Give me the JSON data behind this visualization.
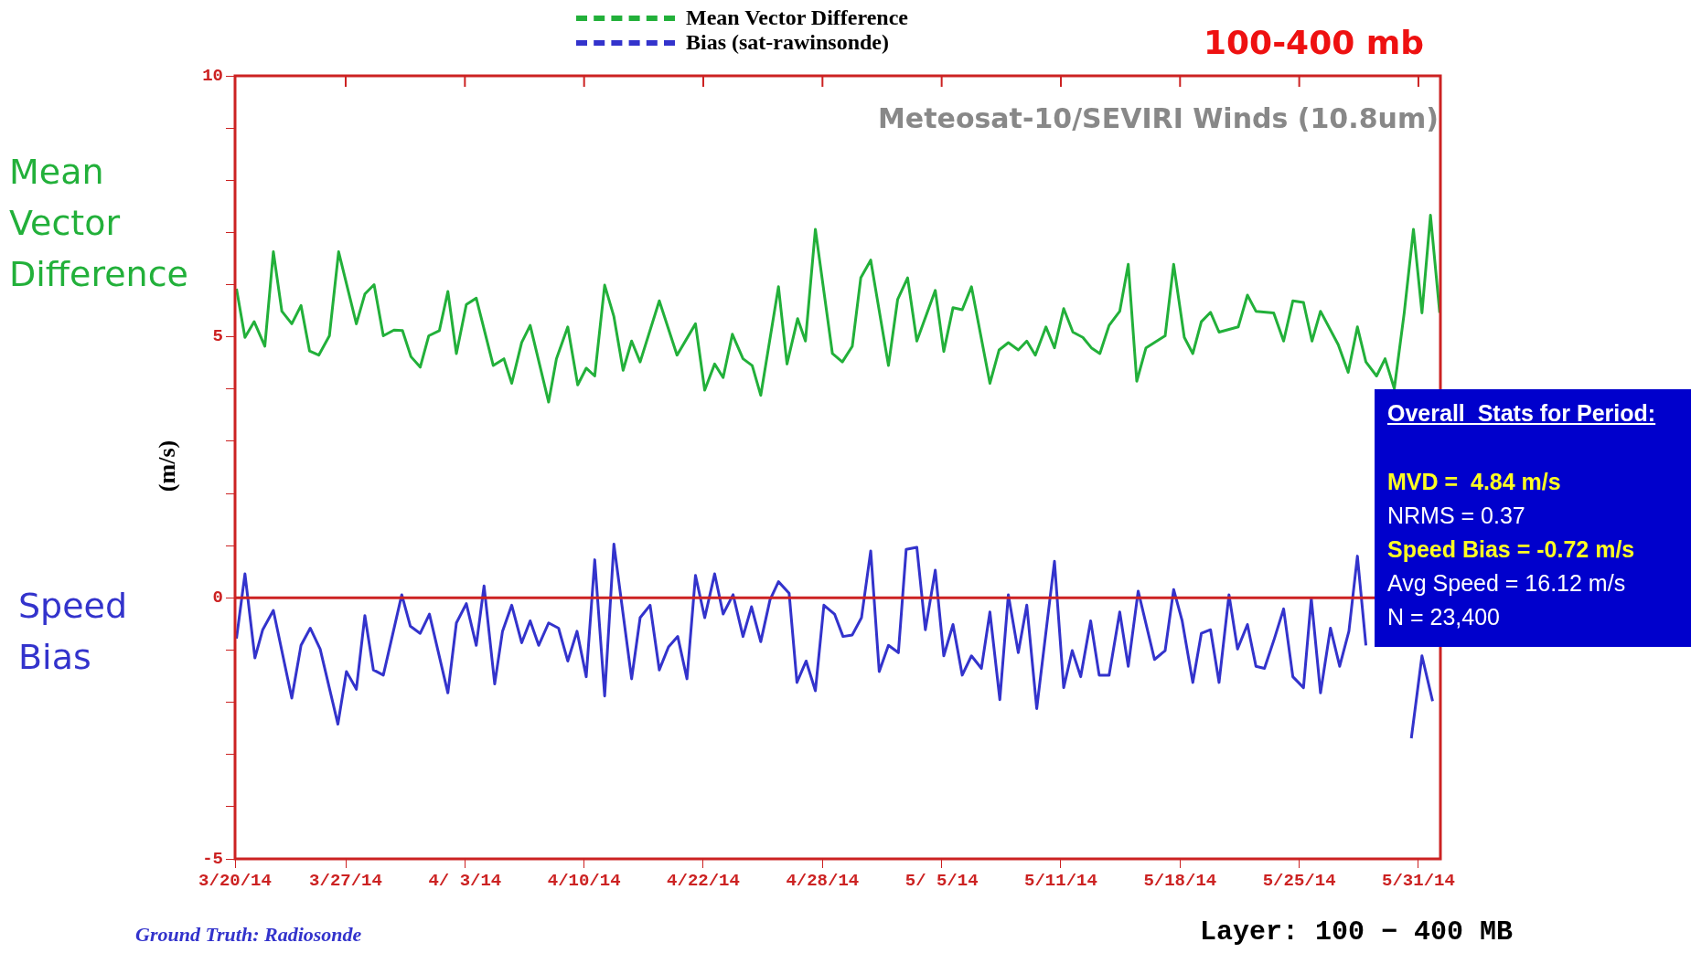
{
  "chart_data": {
    "type": "line",
    "title": "100-400 mb",
    "subtitle": "Meteosat-10/SEVIRI Winds (10.8um)",
    "ylabel": "(m/s)",
    "xlim": [
      "--03-20T12:00",
      "--05-30T07:00"
    ],
    "xticks": [
      {
        "value": "--03-20T12:00",
        "label": "3/20/14"
      },
      {
        "value": "--03-27",
        "label": "3/27/14"
      },
      {
        "value": "--04-03",
        "label": "4/ 3/14"
      },
      {
        "value": "--04-10",
        "label": "4/10/14"
      },
      {
        "value": "--04-17",
        "label": "4/22/14"
      },
      {
        "value": "--04-24",
        "label": "4/28/14"
      },
      {
        "value": "--05-01",
        "label": "5/ 5/14"
      },
      {
        "value": "--05-08",
        "label": "5/11/14"
      },
      {
        "value": "--05-15",
        "label": "5/18/14"
      },
      {
        "value": "--05-22",
        "label": "5/25/14"
      },
      {
        "value": "--05-29",
        "label": "5/31/14"
      }
    ],
    "ylim": [
      -5,
      10
    ],
    "yticks": [
      -5,
      {
        "value": -4,
        "label": null
      },
      {
        "value": -3,
        "label": null
      },
      {
        "value": -2,
        "label": null
      },
      {
        "value": -1,
        "label": null
      },
      0,
      {
        "value": 1,
        "label": null
      },
      {
        "value": 2,
        "label": null
      },
      {
        "value": 3,
        "label": null
      },
      {
        "value": 4,
        "label": null
      },
      5,
      {
        "value": 6,
        "label": null
      },
      {
        "value": 7,
        "label": null
      },
      {
        "value": 8,
        "label": null
      },
      {
        "value": 9,
        "label": null
      },
      10
    ],
    "grid": false,
    "legend": "top",
    "marker": "none",
    "line_style": "solid",
    "ref_lines": [
      {
        "axis": "y",
        "value": 0,
        "color": "#cc2222"
      }
    ],
    "series": [
      {
        "name": "Mean Vector Difference",
        "color": "#22b03a",
        "x": [
          "--03-20T14:00",
          "--03-21T02:00",
          "--03-21T15:00",
          "--03-22T06:00",
          "--03-22T18:00",
          "--03-23T06:00",
          "--03-23T20:00",
          "--03-24T09:00",
          "--03-24T21:00",
          "--03-25T10:00",
          "--03-26T01:00",
          "--03-26T14:00",
          "--03-27T15:00",
          "--03-28T03:00",
          "--03-28T16:00",
          "--03-29T05:00",
          "--03-29T20:00",
          "--03-30T08:00",
          "--03-30T20:00",
          "--03-31T09:00",
          "--03-31T21:00",
          "--04-01T12:00",
          "--04-02T00:00",
          "--04-02T12:00",
          "--04-03T02:00",
          "--04-03T16:00",
          "--04-04T16:00",
          "--04-05T07:00",
          "--04-05T18:00",
          "--04-06T08:00",
          "--04-06T20:00",
          "--04-07T22:00",
          "--04-08T09:00",
          "--04-09T01:00",
          "--04-09T15:00",
          "--04-10T03:00",
          "--04-10T15:00",
          "--04-11T05:00",
          "--04-11T18:00",
          "--04-12T07:00",
          "--04-12T19:00",
          "--04-13T07:00",
          "--04-14T10:00",
          "--04-15T11:00",
          "--04-16T13:00",
          "--04-17T02:00",
          "--04-17T16:00",
          "--04-18T04:00",
          "--04-18T17:00",
          "--04-19T08:00",
          "--04-19T21:00",
          "--04-20T09:00",
          "--04-21T10:00",
          "--04-21T22:00",
          "--04-22T13:00",
          "--04-23T00:00",
          "--04-23T14:00",
          "--04-24T14:00",
          "--04-25T04:00",
          "--04-25T18:00",
          "--04-26T06:00",
          "--04-26T20:00",
          "--04-27T21:00",
          "--04-28T10:00",
          "--04-29T00:00",
          "--04-29T13:00",
          "--04-30T15:00",
          "--05-01T03:00",
          "--05-01T16:00",
          "--05-02T05:00",
          "--05-02T18:00",
          "--05-03T20:00",
          "--05-04T09:00",
          "--05-04T22:00",
          "--05-05T12:00",
          "--05-06T00:00",
          "--05-06T12:00",
          "--05-07T03:00",
          "--05-07T15:00",
          "--05-08T04:00",
          "--05-08T17:00",
          "--05-09T07:00",
          "--05-09T19:00",
          "--05-10T07:00",
          "--05-10T20:00",
          "--05-11T11:00",
          "--05-11T23:00",
          "--05-12T11:00",
          "--05-13T00:00",
          "--05-14T03:00",
          "--05-14T15:00",
          "--05-15T06:00",
          "--05-15T18:00",
          "--05-16T06:00",
          "--05-16T19:00",
          "--05-17T07:00",
          "--05-18T10:00",
          "--05-18T23:00",
          "--05-19T11:00",
          "--05-20T12:00",
          "--05-21T02:00",
          "--05-21T15:00",
          "--05-22T06:00",
          "--05-22T18:00",
          "--05-23T06:00",
          "--05-24T07:00",
          "--05-24T21:00",
          "--05-25T10:00",
          "--05-25T22:00",
          "--05-26T13:00",
          "--05-27T01:00",
          "--05-27T14:00",
          "--05-28T04:00",
          "--05-28T17:00",
          "--05-29T05:00",
          "--05-29T17:00",
          "--05-30T06:00"
        ],
        "values": [
          5.92,
          4.99,
          5.29,
          4.82,
          6.63,
          5.49,
          5.25,
          5.6,
          4.73,
          4.65,
          5.02,
          6.63,
          5.25,
          5.82,
          6.0,
          5.02,
          5.13,
          5.12,
          4.62,
          4.42,
          5.02,
          5.12,
          5.87,
          4.68,
          5.62,
          5.74,
          4.45,
          4.58,
          4.11,
          4.89,
          5.22,
          3.75,
          4.58,
          5.19,
          4.08,
          4.4,
          4.25,
          5.99,
          5.39,
          4.36,
          4.92,
          4.52,
          5.69,
          4.65,
          5.25,
          3.98,
          4.48,
          4.22,
          5.05,
          4.58,
          4.45,
          3.88,
          5.96,
          4.48,
          5.35,
          4.92,
          7.06,
          4.68,
          4.52,
          4.82,
          6.13,
          6.47,
          4.45,
          5.72,
          6.13,
          4.92,
          5.89,
          4.72,
          5.56,
          5.52,
          5.96,
          4.11,
          4.75,
          4.89,
          4.75,
          4.92,
          4.65,
          5.19,
          4.79,
          5.54,
          5.09,
          4.99,
          4.79,
          4.68,
          5.22,
          5.49,
          6.39,
          4.15,
          4.79,
          5.02,
          6.39,
          4.99,
          4.68,
          5.29,
          5.47,
          5.09,
          5.19,
          5.8,
          5.49,
          5.46,
          4.92,
          5.69,
          5.66,
          4.92,
          5.49,
          4.85,
          4.32,
          5.19,
          4.52,
          4.25,
          4.58,
          4.01,
          5.46,
          7.06,
          5.46,
          7.33,
          5.46
        ]
      },
      {
        "name": "Bias (sat-rawinsonde)",
        "color": "#3333cc",
        "x": [
          "--03-20T14:00",
          "--03-21T02:00",
          "--03-21T16:00",
          "--03-22T03:00",
          "--03-22T18:00",
          "--03-23T20:00",
          "--03-24T09:00",
          "--03-24T22:00",
          "--03-25T12:00",
          "--03-26T13:00",
          "--03-27T01:00",
          "--03-27T15:00",
          "--03-28T03:00",
          "--03-28T15:00",
          "--03-29T05:00",
          "--03-30T07:00",
          "--03-30T19:00",
          "--03-31T09:00",
          "--03-31T22:00",
          "--04-02T00:00",
          "--04-02T12:00",
          "--04-03T02:00",
          "--04-03T16:00",
          "--04-04T03:00",
          "--04-04T18:00",
          "--04-05T05:00",
          "--04-05T18:00",
          "--04-06T08:00",
          "--04-06T20:00",
          "--04-07T08:00",
          "--04-07T22:00",
          "--04-08T12:00",
          "--04-09T01:00",
          "--04-09T14:00",
          "--04-10T03:00",
          "--04-10T15:00",
          "--04-11T05:00",
          "--04-11T18:00",
          "--04-12T19:00",
          "--04-13T07:00",
          "--04-13T21:00",
          "--04-14T10:00",
          "--04-14T23:00",
          "--04-15T12:00",
          "--04-16T01:00",
          "--04-16T13:00",
          "--04-17T02:00",
          "--04-17T16:00",
          "--04-18T04:00",
          "--04-18T18:00",
          "--04-19T08:00",
          "--04-19T20:00",
          "--04-20T09:00",
          "--04-20T22:00",
          "--04-21T10:00",
          "--04-22T01:00",
          "--04-22T12:00",
          "--04-23T01:00",
          "--04-23T14:00",
          "--04-24T02:00",
          "--04-24T17:00",
          "--04-25T05:00",
          "--04-25T18:00",
          "--04-26T07:00",
          "--04-26T20:00",
          "--04-27T08:00",
          "--04-27T21:00",
          "--04-28T11:00",
          "--04-28T22:00",
          "--04-29T13:00",
          "--04-30T01:00",
          "--04-30T15:00",
          "--05-01T03:00",
          "--05-01T16:00",
          "--05-02T05:00",
          "--05-02T18:00",
          "--05-03T08:00",
          "--05-03T20:00",
          "--05-04T10:00",
          "--05-04T22:00",
          "--05-05T12:00",
          "--05-06T00:00",
          "--05-06T14:00",
          "--05-07T15:00",
          "--05-08T04:00",
          "--05-08T16:00",
          "--05-09T04:00",
          "--05-09T18:00",
          "--05-10T06:00",
          "--05-10T20:00",
          "--05-11T11:00",
          "--05-11T23:00",
          "--05-12T13:00",
          "--05-13T12:00",
          "--05-14T03:00",
          "--05-14T15:00",
          "--05-15T03:00",
          "--05-15T18:00",
          "--05-16T06:00",
          "--05-16T19:00",
          "--05-17T07:00",
          "--05-17T21:00",
          "--05-18T09:00",
          "--05-18T23:00",
          "--05-19T11:00",
          "--05-19T23:00",
          "--05-20T13:00",
          "--05-21T02:00",
          "--05-21T15:00",
          "--05-22T06:00",
          "--05-22T17:00",
          "--05-23T06:00",
          "--05-23T20:00",
          "--05-24T09:00",
          "--05-24T22:00",
          "--05-25T10:00",
          "--05-25T22:00",
          "--05-26T23:00",
          "--05-28T14:00",
          "--05-29T05:00",
          "--05-29T20:00"
        ],
        "values": [
          -0.78,
          0.46,
          -1.15,
          -0.61,
          -0.24,
          -1.92,
          -0.91,
          -0.58,
          -0.98,
          -2.42,
          -1.41,
          -1.75,
          -0.34,
          -1.38,
          -1.48,
          0.06,
          -0.54,
          -0.68,
          -0.31,
          -1.82,
          -0.48,
          -0.11,
          -0.91,
          0.23,
          -1.65,
          -0.64,
          -0.14,
          -0.86,
          -0.44,
          -0.91,
          -0.48,
          -0.58,
          -1.21,
          -0.64,
          -1.51,
          0.73,
          -1.88,
          1.03,
          -1.55,
          -0.38,
          -0.14,
          -1.38,
          -0.94,
          -0.74,
          -1.55,
          0.43,
          -0.38,
          0.46,
          -0.31,
          0.06,
          -0.74,
          -0.17,
          -0.84,
          -0.04,
          0.31,
          0.09,
          -1.62,
          -1.21,
          -1.78,
          -0.14,
          -0.31,
          -0.74,
          -0.71,
          -0.38,
          0.9,
          -1.41,
          -0.91,
          -1.05,
          0.93,
          0.97,
          -0.61,
          0.53,
          -1.11,
          -0.51,
          -1.48,
          -1.11,
          -1.35,
          -0.27,
          -1.95,
          0.06,
          -1.05,
          -0.14,
          -2.12,
          0.7,
          -1.72,
          -1.01,
          -1.51,
          -0.44,
          -1.48,
          -1.48,
          -0.27,
          -1.31,
          0.13,
          -1.18,
          -1.01,
          0.16,
          -0.44,
          -1.62,
          -0.68,
          -0.61,
          -1.62,
          0.06,
          -0.98,
          -0.51,
          -1.31,
          -1.35,
          -0.78,
          -0.21,
          -1.51,
          -1.72,
          -0.01,
          -1.82,
          -0.58,
          -1.31,
          -0.64,
          0.8,
          -0.91,
          null,
          -2.69,
          -1.11,
          -1.98
        ]
      }
    ],
    "annotations": [
      "Mean Vector Difference",
      "Speed Bias",
      "Ground Truth: Radiosonde",
      "Layer: 100 − 400 MB",
      "Overall  Stats for Period:",
      "MVD =  4.84 m/s",
      "NRMS = 0.37",
      "Speed Bias = -0.72 m/s",
      "Avg Speed = 16.12 m/s",
      "N = 23,400"
    ]
  }
}
